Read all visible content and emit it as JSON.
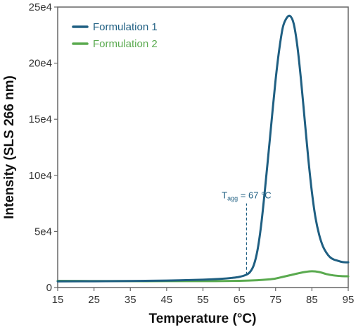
{
  "chart_data": {
    "type": "line",
    "title": "",
    "xlabel": "Temperature (°C)",
    "ylabel": "Intensity (SLS 266 nm)",
    "xlim": [
      15,
      95
    ],
    "ylim": [
      0,
      250000
    ],
    "x_ticks": [
      15,
      25,
      35,
      45,
      55,
      65,
      75,
      85,
      95
    ],
    "y_ticks": [
      0,
      50000,
      100000,
      150000,
      200000,
      250000
    ],
    "x_tick_labels": [
      "15",
      "25",
      "35",
      "45",
      "55",
      "65",
      "75",
      "85",
      "95"
    ],
    "y_tick_labels": [
      "0",
      "5e4",
      "10e4",
      "15e4",
      "20e4",
      "25e4"
    ],
    "grid": false,
    "legend": "top-left",
    "series": [
      {
        "name": "Formulation 1",
        "color": "#1f5f82",
        "x": [
          15,
          25,
          35,
          45,
          55,
          60,
          63,
          65,
          67,
          68,
          69,
          70,
          71,
          72,
          73,
          74,
          75,
          76,
          77,
          78,
          79,
          80,
          81,
          82,
          83,
          84,
          85,
          86,
          87,
          88,
          89,
          90,
          91,
          92,
          93,
          94,
          95
        ],
        "y": [
          5500,
          5600,
          5800,
          6200,
          7000,
          7800,
          8600,
          9500,
          11500,
          14000,
          20000,
          33000,
          55000,
          85000,
          118000,
          152000,
          185000,
          212000,
          232000,
          240000,
          242000,
          235000,
          215000,
          185000,
          150000,
          115000,
          85000,
          62000,
          47000,
          37000,
          31000,
          27000,
          25000,
          24000,
          23000,
          22500,
          22500
        ]
      },
      {
        "name": "Formulation 2",
        "color": "#5aaa4f",
        "x": [
          15,
          25,
          35,
          45,
          55,
          65,
          70,
          73,
          75,
          77,
          79,
          81,
          83,
          85,
          87,
          89,
          91,
          93,
          95
        ],
        "y": [
          6000,
          5800,
          5700,
          5700,
          5700,
          6000,
          6500,
          7200,
          8000,
          9500,
          11000,
          12500,
          13800,
          14500,
          13800,
          12000,
          10800,
          10200,
          10000
        ]
      }
    ],
    "annotations": [
      {
        "label_main": "T",
        "label_sub": "agg",
        "label_rest": " = 67 °C",
        "x": 67,
        "y_start": 11500,
        "y_end": 75000,
        "color": "#1f5f82"
      }
    ]
  }
}
